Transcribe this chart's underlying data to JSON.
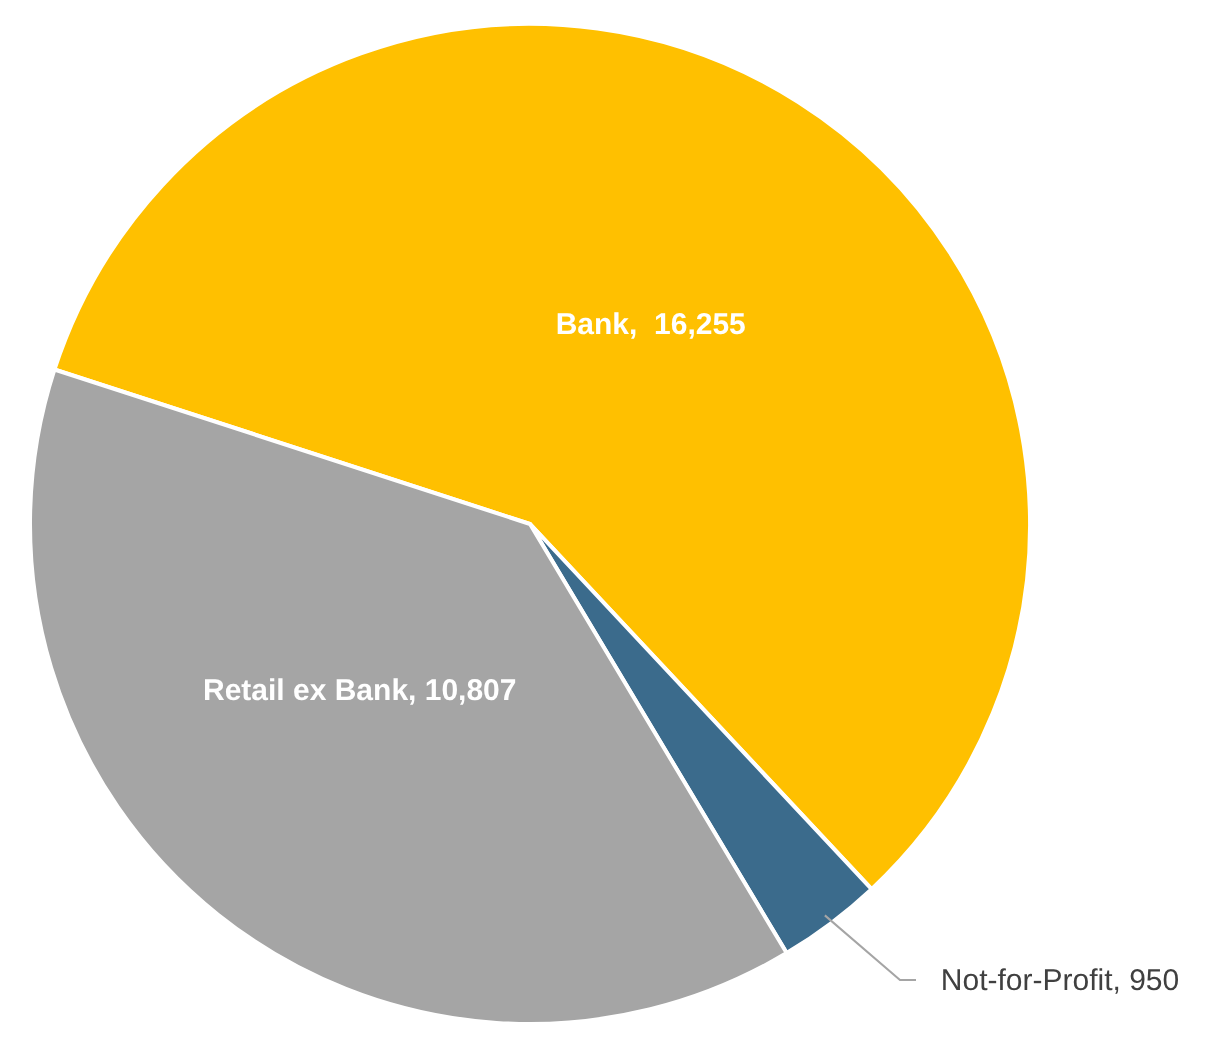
{
  "chart_data": {
    "type": "pie",
    "categories": [
      "Bank",
      "Not-for-Profit",
      "Retail ex Bank"
    ],
    "values": [
      16255,
      950,
      10807
    ],
    "value_labels": [
      "16,255",
      "950",
      "10,807"
    ],
    "colors": [
      "#ffc000",
      "#3b6b8c",
      "#a5a5a5"
    ]
  }
}
